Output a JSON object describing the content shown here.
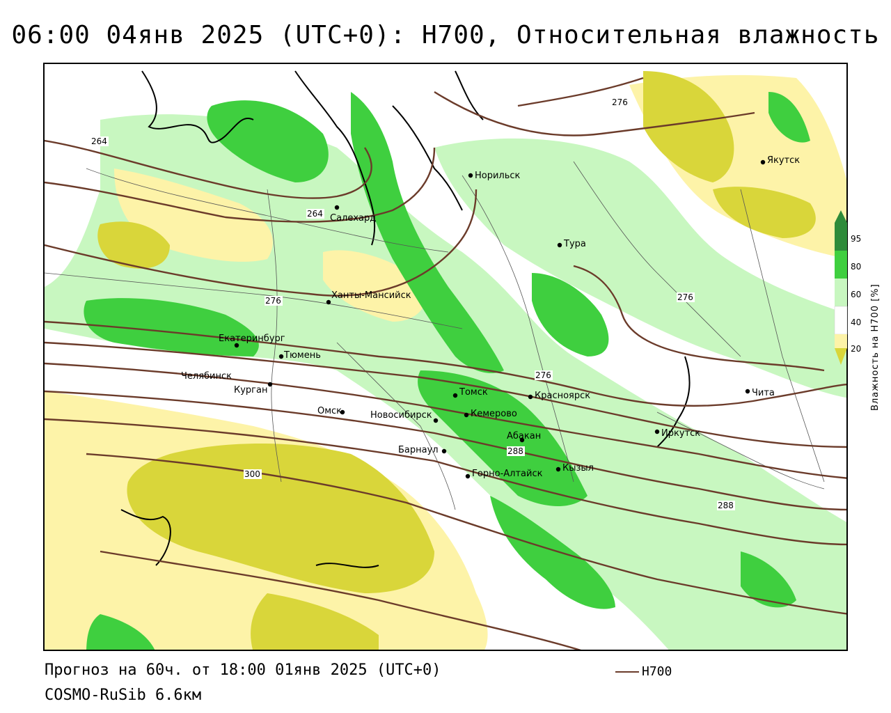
{
  "title": "06:00 04янв 2025 (UTC+0): H700, Относительная влажность",
  "footer": {
    "forecast": "Прогноз на 60ч. от 18:00 01янв 2025 (UTC+0)",
    "model": "COSMO-RuSib 6.6км"
  },
  "series_legend": {
    "label": "H700",
    "color": "#6b3b2a"
  },
  "humidity_legend": {
    "title": "Влажность на H700 [%]",
    "ticks": [
      "95",
      "80",
      "60",
      "40",
      "20"
    ],
    "colors": {
      "95": "#2e8b3a",
      "80": "#3fcf3f",
      "60": "#c8f7c0",
      "40": "#ffffff",
      "20": "#fdf3a8",
      "lt20": "#d9d63a"
    }
  },
  "cities": [
    {
      "name": "Норильск"
    },
    {
      "name": "Якутск"
    },
    {
      "name": "Салехард"
    },
    {
      "name": "Тура"
    },
    {
      "name": "Ханты-Мансийск"
    },
    {
      "name": "Екатеринбург"
    },
    {
      "name": "Тюмень"
    },
    {
      "name": "Челябинск"
    },
    {
      "name": "Курган"
    },
    {
      "name": "Омск"
    },
    {
      "name": "Новосибирск"
    },
    {
      "name": "Томск"
    },
    {
      "name": "Кемерово"
    },
    {
      "name": "Красноярск"
    },
    {
      "name": "Абакан"
    },
    {
      "name": "Барнаул"
    },
    {
      "name": "Горно-Алтайск"
    },
    {
      "name": "Кызыл"
    },
    {
      "name": "Иркутск"
    },
    {
      "name": "Чита"
    }
  ],
  "isoline_labels": [
    "264",
    "264",
    "276",
    "276",
    "276",
    "276",
    "288",
    "288",
    "300"
  ]
}
